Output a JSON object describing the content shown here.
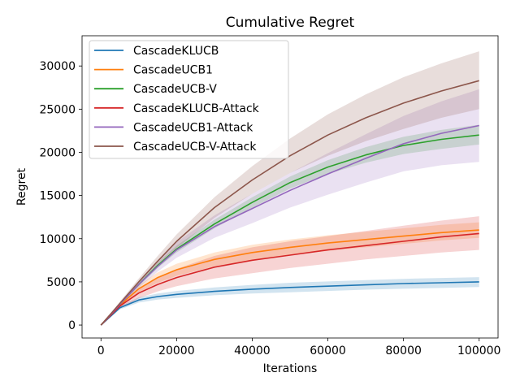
{
  "chart_data": {
    "type": "line",
    "title": "Cumulative Regret",
    "xlabel": "Iterations",
    "ylabel": "Regret",
    "xlim": [
      -5000,
      105000
    ],
    "ylim": [
      -1500,
      33500
    ],
    "xticks": [
      0,
      20000,
      40000,
      60000,
      80000,
      100000
    ],
    "yticks": [
      0,
      5000,
      10000,
      15000,
      20000,
      25000,
      30000
    ],
    "grid": false,
    "legend_position": "top-left",
    "x": [
      0,
      5000,
      10000,
      15000,
      20000,
      30000,
      40000,
      50000,
      60000,
      70000,
      80000,
      90000,
      100000
    ],
    "series": [
      {
        "name": "CascadeKLUCB",
        "color": "#1f77b4",
        "values": [
          0,
          2000,
          2900,
          3300,
          3550,
          3900,
          4150,
          4350,
          4500,
          4650,
          4800,
          4900,
          5000
        ],
        "lower": [
          0,
          1800,
          2600,
          2950,
          3150,
          3450,
          3650,
          3800,
          3950,
          4100,
          4200,
          4300,
          4400
        ],
        "upper": [
          0,
          2200,
          3200,
          3650,
          3950,
          4350,
          4650,
          4900,
          5050,
          5200,
          5350,
          5450,
          5550
        ]
      },
      {
        "name": "CascadeUCB1",
        "color": "#ff7f0e",
        "values": [
          0,
          2300,
          4200,
          5500,
          6400,
          7600,
          8400,
          9000,
          9500,
          9900,
          10300,
          10700,
          11000
        ],
        "lower": [
          0,
          2100,
          3800,
          4900,
          5700,
          6800,
          7500,
          8100,
          8600,
          9000,
          9400,
          9800,
          10100
        ],
        "upper": [
          0,
          2500,
          4600,
          6100,
          7100,
          8400,
          9300,
          9900,
          10400,
          10800,
          11200,
          11600,
          11900
        ]
      },
      {
        "name": "CascadeUCB-V",
        "color": "#2ca02c",
        "values": [
          0,
          2400,
          4700,
          6900,
          8800,
          11700,
          14200,
          16500,
          18300,
          19700,
          20800,
          21500,
          22000
        ],
        "lower": [
          0,
          2300,
          4500,
          6600,
          8400,
          11200,
          13600,
          15800,
          17500,
          18800,
          19800,
          20400,
          20900
        ],
        "upper": [
          0,
          2500,
          4900,
          7200,
          9200,
          12200,
          14800,
          17200,
          19100,
          20600,
          21800,
          22600,
          23200
        ]
      },
      {
        "name": "CascadeKLUCB-Attack",
        "color": "#d62728",
        "values": [
          0,
          2200,
          3700,
          4700,
          5500,
          6700,
          7500,
          8100,
          8700,
          9200,
          9700,
          10200,
          10600
        ],
        "lower": [
          0,
          1900,
          3100,
          3900,
          4500,
          5400,
          6000,
          6600,
          7100,
          7600,
          8000,
          8400,
          8700
        ],
        "upper": [
          0,
          2500,
          4300,
          5500,
          6500,
          8000,
          9000,
          9700,
          10300,
          10900,
          11500,
          12100,
          12600
        ]
      },
      {
        "name": "CascadeUCB1-Attack",
        "color": "#9467bd",
        "values": [
          0,
          2400,
          4700,
          6800,
          8700,
          11400,
          13500,
          15600,
          17500,
          19300,
          21000,
          22200,
          23100
        ],
        "lower": [
          0,
          2200,
          4300,
          6200,
          7800,
          10100,
          11800,
          13600,
          15100,
          16500,
          17800,
          18500,
          18900
        ],
        "upper": [
          0,
          2600,
          5100,
          7400,
          9600,
          12700,
          15200,
          17600,
          19900,
          22100,
          24200,
          25900,
          27300
        ]
      },
      {
        "name": "CascadeUCB-V-Attack",
        "color": "#8c564b",
        "values": [
          0,
          2500,
          5000,
          7400,
          9700,
          13600,
          16800,
          19600,
          22000,
          24000,
          25700,
          27100,
          28300
        ],
        "lower": [
          0,
          2300,
          4600,
          6800,
          8900,
          12400,
          15200,
          17600,
          19600,
          21300,
          22700,
          24000,
          25000
        ],
        "upper": [
          0,
          2700,
          5400,
          8000,
          10500,
          14800,
          18400,
          21600,
          24400,
          26700,
          28700,
          30300,
          31700
        ]
      }
    ]
  }
}
